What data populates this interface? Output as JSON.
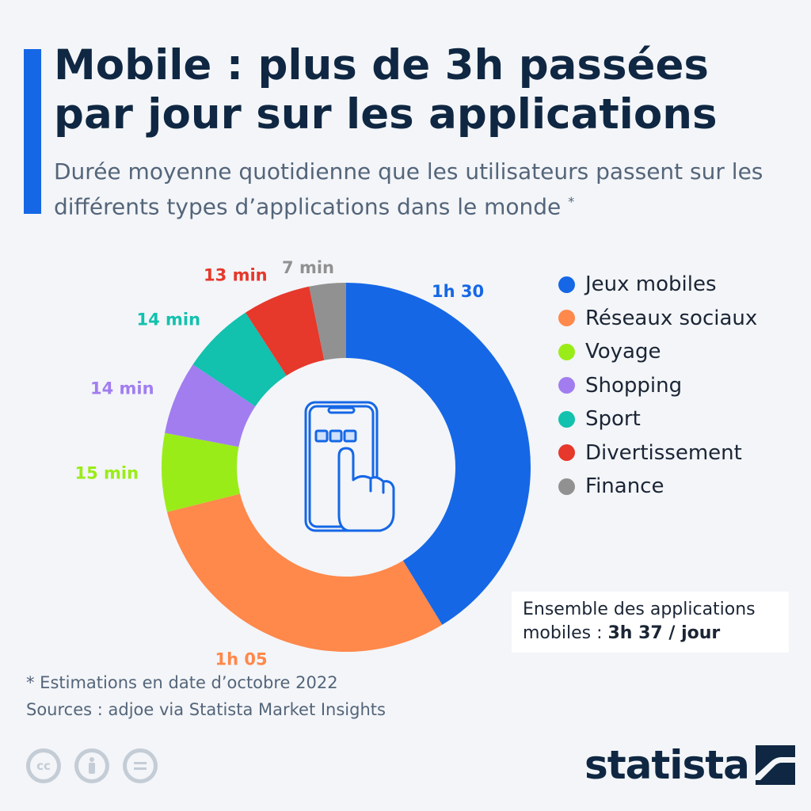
{
  "header": {
    "title": "Mobile : plus de 3h passées par jour sur les applications",
    "subtitle": "Durée moyenne quotidienne que les utilisateurs passent sur les différents types d’applications dans le monde",
    "subtitle_mark": "*"
  },
  "chart_data": {
    "type": "pie",
    "style": "donut",
    "unit": "minutes",
    "categories": [
      "Jeux mobiles",
      "Réseaux sociaux",
      "Voyage",
      "Shopping",
      "Sport",
      "Divertissement",
      "Finance"
    ],
    "values": [
      90,
      65,
      15,
      14,
      14,
      13,
      7
    ],
    "data_labels": [
      "1h 30",
      "1h 05",
      "15 min",
      "14 min",
      "14 min",
      "13 min",
      "7 min"
    ],
    "colors": [
      "#1567e6",
      "#ff884b",
      "#9aec18",
      "#a17df0",
      "#12c1ae",
      "#e6382b",
      "#919191"
    ],
    "legend_placement": "right",
    "center_icon": "phone-touch-icon"
  },
  "total": {
    "text": "Ensemble des applications mobiles :",
    "value": "3h 37 / jour"
  },
  "footer": {
    "note": "* Estimations en date d’octobre 2022",
    "source": "Sources : adjoe via Statista Market Insights",
    "license_icons": [
      "cc-icon",
      "attribution-icon",
      "no-derivatives-icon"
    ],
    "brand": "statista"
  }
}
